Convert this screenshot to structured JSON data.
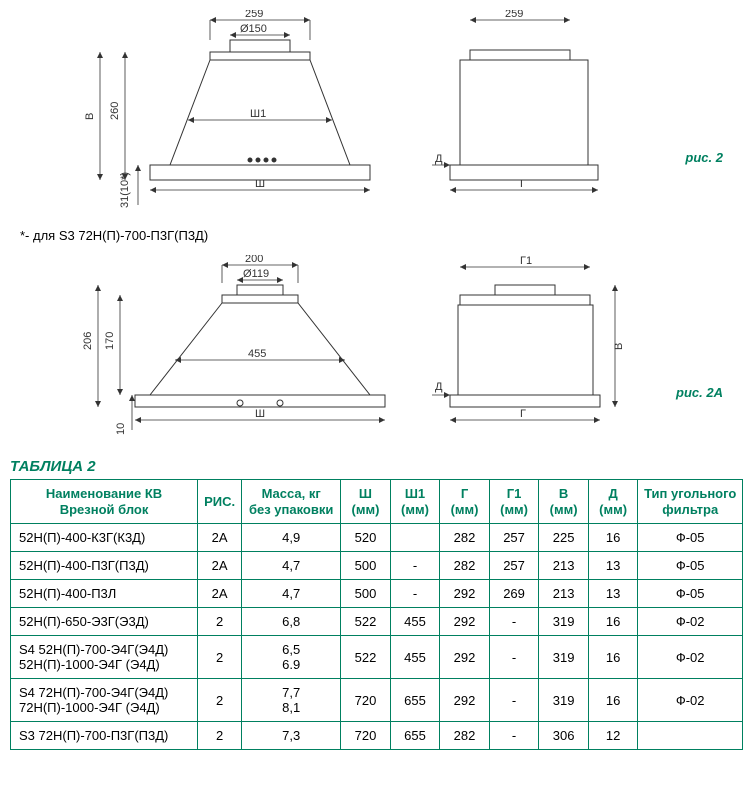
{
  "fig1": {
    "label": "рис. 2",
    "front": {
      "top_width": "259",
      "diameter": "Ø150",
      "height_body": "260",
      "height_label_left": "В",
      "width_inner": "Ш1",
      "width_full": "Ш",
      "bottom_offset": "31(10*)"
    },
    "side": {
      "top_width": "259",
      "depth_offset": "Д",
      "depth_full": "Г"
    }
  },
  "footnote": "*- для S3 72Н(П)-700-П3Г(П3Д)",
  "fig2": {
    "label": "рис. 2А",
    "front": {
      "top_width": "200",
      "diameter": "Ø119",
      "height_body": "170",
      "height_total": "206",
      "width_inner": "455",
      "width_full": "Ш",
      "bottom_offset": "10"
    },
    "side": {
      "top_width": "Г1",
      "depth_offset": "Д",
      "depth_full": "Г",
      "height_label": "В"
    }
  },
  "table": {
    "title": "ТАБЛИЦА 2",
    "columns": [
      "Наименование КВ\nВрезной блок",
      "РИС.",
      "Масса, кг\nбез упаковки",
      "Ш\n(мм)",
      "Ш1\n(мм)",
      "Г\n(мм)",
      "Г1\n(мм)",
      "В\n(мм)",
      "Д\n(мм)",
      "Тип угольного\nфильтра"
    ],
    "rows": [
      [
        "52Н(П)-400-К3Г(К3Д)",
        "2А",
        "4,9",
        "520",
        "",
        "282",
        "257",
        "225",
        "16",
        "Ф-05"
      ],
      [
        "52Н(П)-400-П3Г(П3Д)",
        "2А",
        "4,7",
        "500",
        "-",
        "282",
        "257",
        "213",
        "13",
        "Ф-05"
      ],
      [
        "52Н(П)-400-П3Л",
        "2А",
        "4,7",
        "500",
        "-",
        "292",
        "269",
        "213",
        "13",
        "Ф-05"
      ],
      [
        "52Н(П)-650-Э3Г(Э3Д)",
        "2",
        "6,8",
        "522",
        "455",
        "292",
        "-",
        "319",
        "16",
        "Ф-02"
      ],
      [
        "S4 52Н(П)-700-Э4Г(Э4Д)\n52Н(П)-1000-Э4Г (Э4Д)",
        "2",
        "6,5\n6.9",
        "522",
        "455",
        "292",
        "-",
        "319",
        "16",
        "Ф-02"
      ],
      [
        "S4 72Н(П)-700-Э4Г(Э4Д)\n72Н(П)-1000-Э4Г (Э4Д)",
        "2",
        "7,7\n8,1",
        "720",
        "655",
        "292",
        "-",
        "319",
        "16",
        "Ф-02"
      ],
      [
        "S3 72Н(П)-700-П3Г(П3Д)",
        "2",
        "7,3",
        "720",
        "655",
        "282",
        "-",
        "306",
        "12",
        ""
      ]
    ],
    "col_widths": [
      "170",
      "40",
      "90",
      "45",
      "45",
      "45",
      "45",
      "45",
      "45",
      "95"
    ]
  },
  "colors": {
    "accent": "#008060",
    "line": "#333333"
  }
}
